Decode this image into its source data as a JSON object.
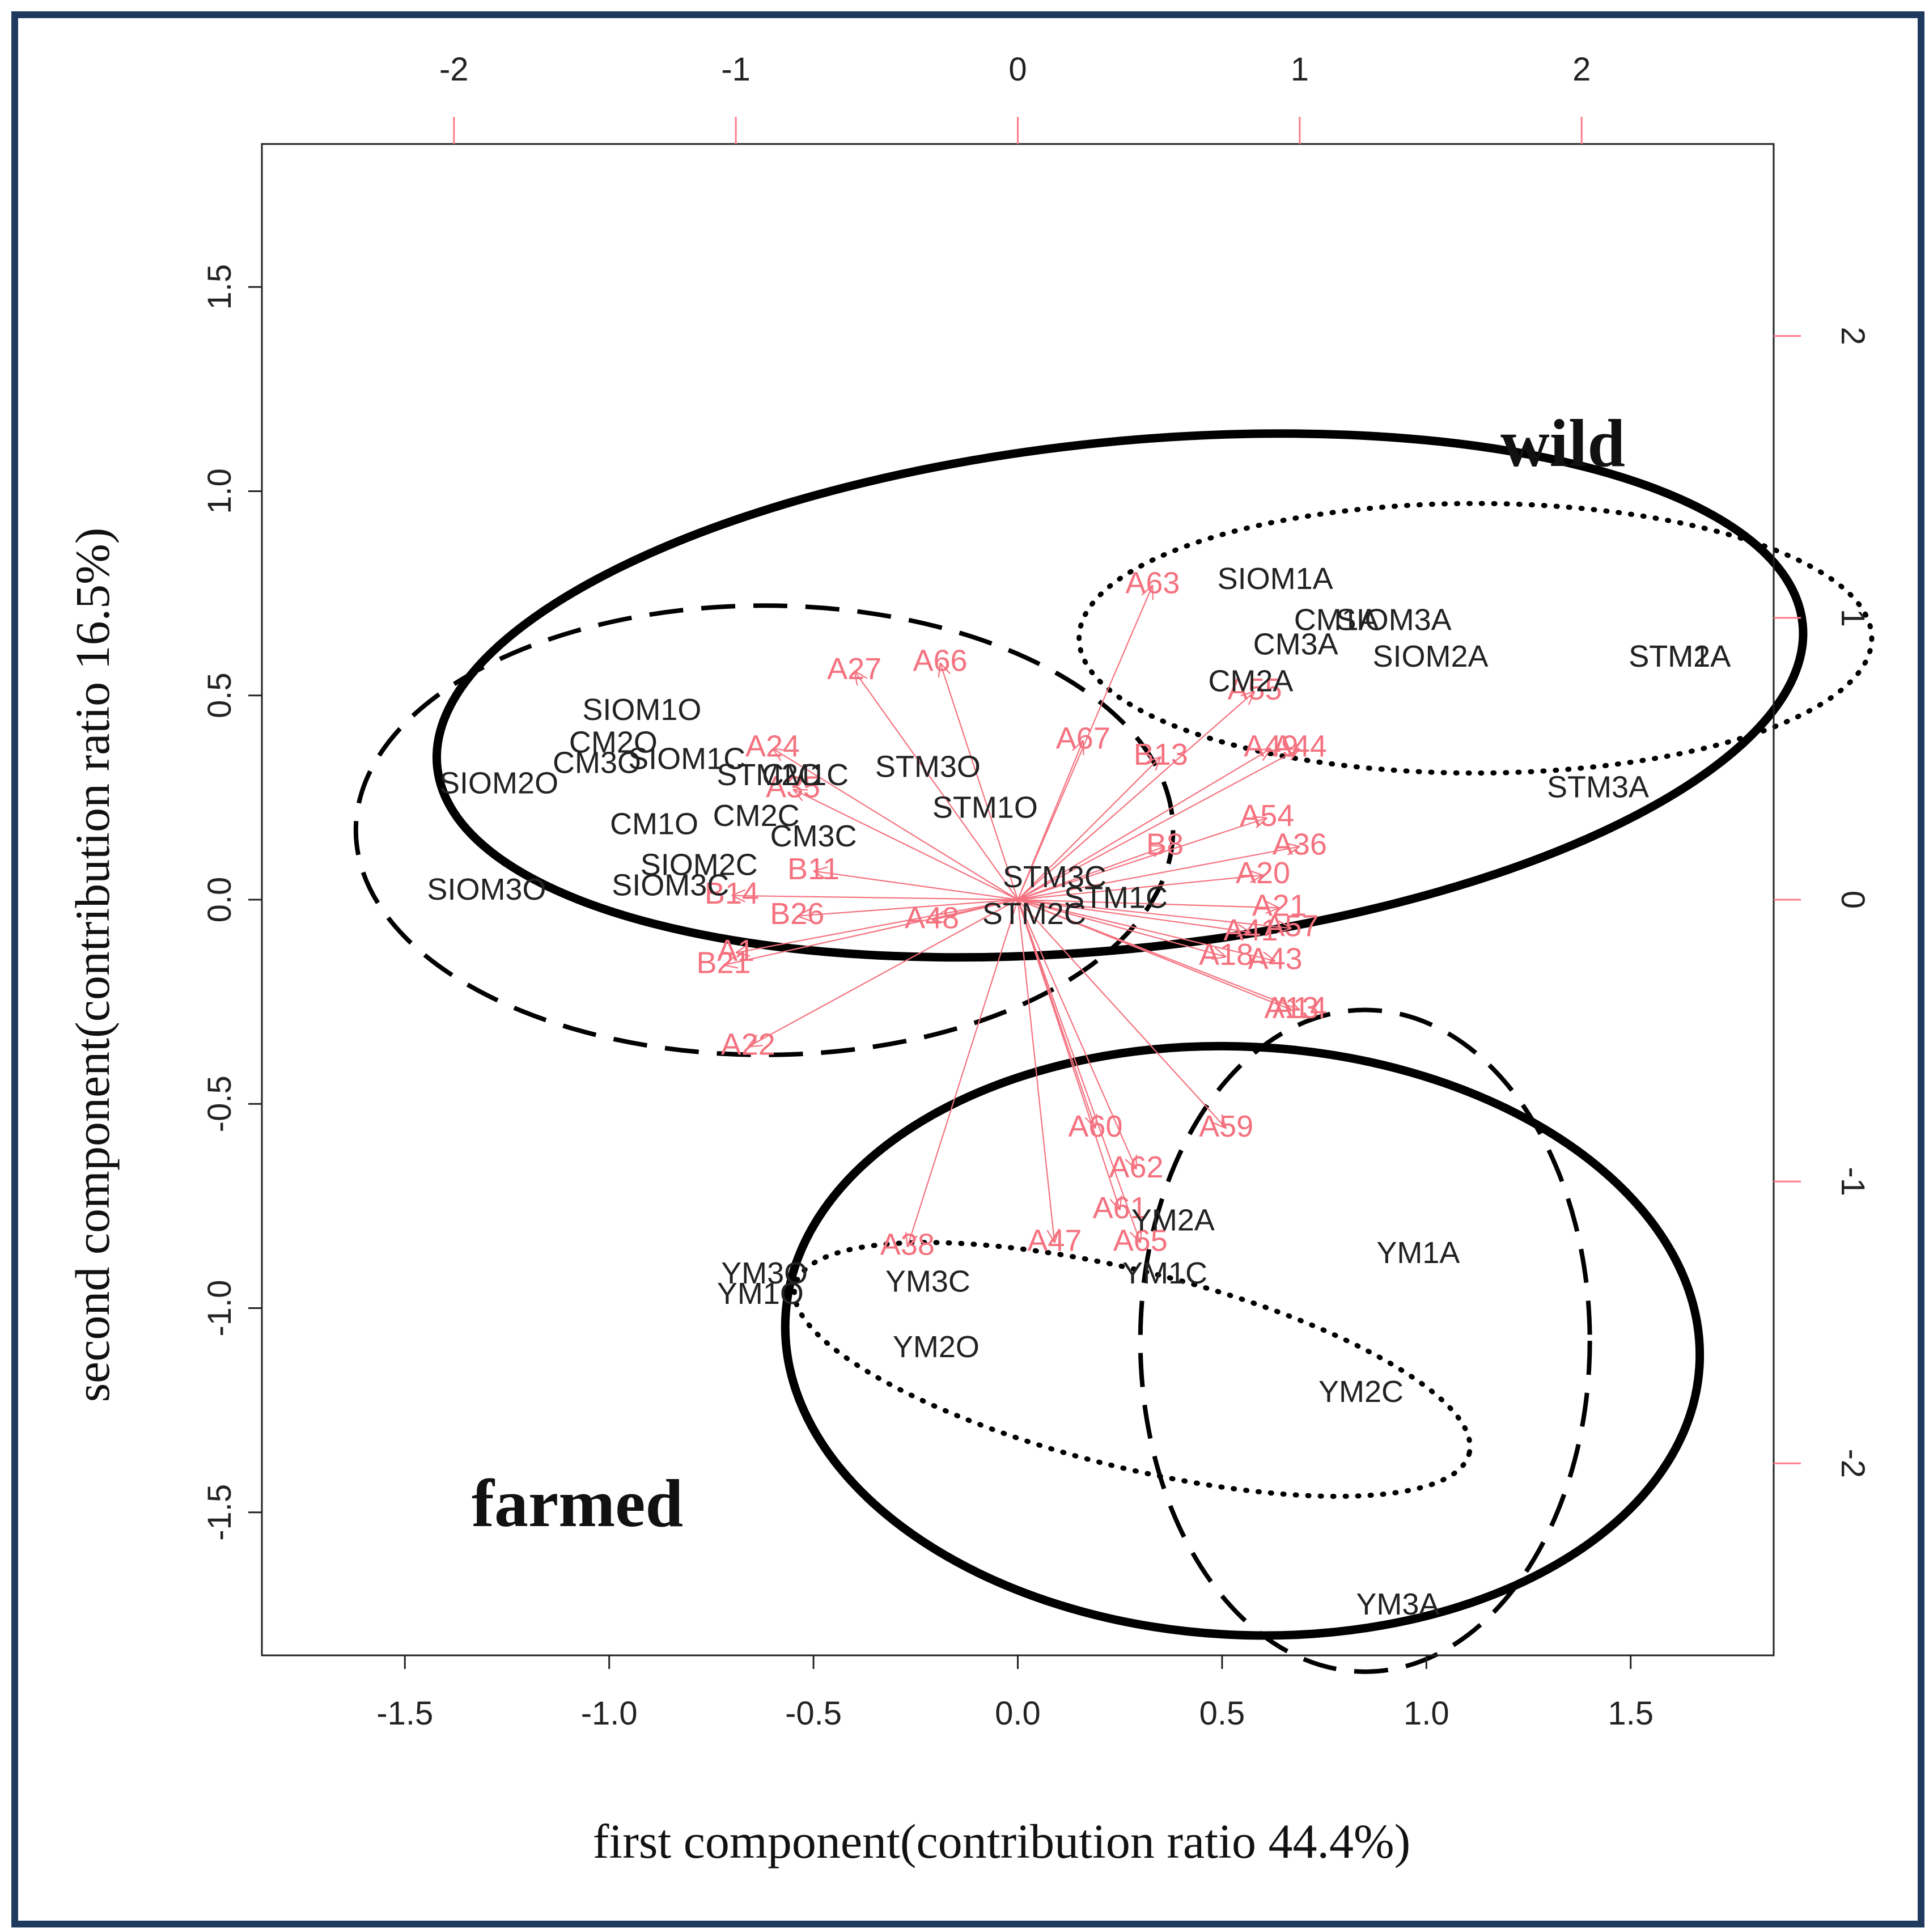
{
  "chart_data": {
    "type": "biplot",
    "xlabel": "first component(contribution ratio 44.4%)",
    "ylabel": "second component(contribution ratio 16.5%)",
    "xlim": [
      -1.85,
      1.85
    ],
    "ylim": [
      -1.85,
      1.85
    ],
    "x_ticks": [
      "-1.5",
      "-1.0",
      "-0.5",
      "0.0",
      "0.5",
      "1.0",
      "1.5"
    ],
    "y_ticks": [
      "-1.5",
      "-1.0",
      "-0.5",
      "0.0",
      "0.5",
      "1.0",
      "1.5"
    ],
    "top_ticks": [
      "-2",
      "-1",
      "0",
      "1",
      "2"
    ],
    "right_ticks": [
      "-2",
      "-1",
      "0",
      "1",
      "2"
    ],
    "loadings_scale_per_unit": 0.69,
    "groups": [
      {
        "label": "wild"
      },
      {
        "label": "farmed"
      }
    ],
    "ellipses": [
      {
        "style": "solid",
        "cx": 0.25,
        "cy": 0.5,
        "rx": 1.68,
        "ry": 0.62,
        "angle": 6
      },
      {
        "style": "dashed",
        "cx": -0.62,
        "cy": 0.17,
        "rx": 1.0,
        "ry": 0.55,
        "angle": 0
      },
      {
        "style": "dotted",
        "cx": 1.12,
        "cy": 0.64,
        "rx": 0.97,
        "ry": 0.33,
        "angle": 0
      },
      {
        "style": "solid",
        "cx": 0.55,
        "cy": -1.08,
        "rx": 1.12,
        "ry": 0.72,
        "angle": -3
      },
      {
        "style": "dashed",
        "cx": 0.85,
        "cy": -1.08,
        "rx": 0.55,
        "ry": 0.81,
        "angle": 0
      },
      {
        "style": "dotted",
        "cx": 0.28,
        "cy": -1.15,
        "rx": 0.85,
        "ry": 0.24,
        "angle": -14
      }
    ],
    "samples": [
      {
        "label": "SIOM1A",
        "x": 0.63,
        "y": 0.78
      },
      {
        "label": "CM1A",
        "x": 0.78,
        "y": 0.68
      },
      {
        "label": "SIOM3A",
        "x": 0.92,
        "y": 0.68
      },
      {
        "label": "CM3A",
        "x": 0.68,
        "y": 0.62
      },
      {
        "label": "SIOM2A",
        "x": 1.01,
        "y": 0.59
      },
      {
        "label": "STM1A",
        "x": 1.62,
        "y": 0.59
      },
      {
        "label": "STM2A",
        "x": 1.62,
        "y": 0.59
      },
      {
        "label": "CM2A",
        "x": 0.57,
        "y": 0.53
      },
      {
        "label": "STM3A",
        "x": 1.42,
        "y": 0.27
      },
      {
        "label": "SIOM1O",
        "x": -0.92,
        "y": 0.46
      },
      {
        "label": "CM2O",
        "x": -0.99,
        "y": 0.38
      },
      {
        "label": "CM3O",
        "x": -1.03,
        "y": 0.33
      },
      {
        "label": "SIOM1C",
        "x": -0.81,
        "y": 0.34
      },
      {
        "label": "SIOM2O",
        "x": -1.27,
        "y": 0.28
      },
      {
        "label": "STM2C",
        "x": -0.61,
        "y": 0.3
      },
      {
        "label": "CM1C",
        "x": -0.52,
        "y": 0.3
      },
      {
        "label": "STM3O",
        "x": -0.22,
        "y": 0.32
      },
      {
        "label": "STM1O",
        "x": -0.08,
        "y": 0.22
      },
      {
        "label": "CM1O",
        "x": -0.89,
        "y": 0.18
      },
      {
        "label": "CM2C",
        "x": -0.64,
        "y": 0.2
      },
      {
        "label": "CM3C",
        "x": -0.5,
        "y": 0.15
      },
      {
        "label": "SIOM2C",
        "x": -0.78,
        "y": 0.08
      },
      {
        "label": "SIOM3O",
        "x": -1.3,
        "y": 0.02
      },
      {
        "label": "SIOM3C",
        "x": -0.85,
        "y": 0.03
      },
      {
        "label": "STM3C",
        "x": 0.09,
        "y": 0.05
      },
      {
        "label": "STM1C",
        "x": 0.24,
        "y": 0.0
      },
      {
        "label": "STM2C",
        "x": 0.04,
        "y": -0.04
      },
      {
        "label": "YM2A",
        "x": 0.38,
        "y": -0.79
      },
      {
        "label": "YM1A",
        "x": 0.98,
        "y": -0.87
      },
      {
        "label": "YM1C",
        "x": 0.36,
        "y": -0.92
      },
      {
        "label": "YM3O",
        "x": -0.62,
        "y": -0.92
      },
      {
        "label": "YM3C",
        "x": -0.22,
        "y": -0.94
      },
      {
        "label": "YM1O",
        "x": -0.63,
        "y": -0.97
      },
      {
        "label": "YM2O",
        "x": -0.2,
        "y": -1.1
      },
      {
        "label": "YM2C",
        "x": 0.84,
        "y": -1.21
      },
      {
        "label": "YM3A",
        "x": 0.93,
        "y": -1.73
      }
    ],
    "variables": [
      {
        "label": "A63",
        "x": 0.33,
        "y": 0.77,
        "tx": 0.29,
        "ty": 0.62
      },
      {
        "label": "A27",
        "x": -0.4,
        "y": 0.56,
        "tx": -0.33,
        "ty": 0.45
      },
      {
        "label": "A66",
        "x": -0.19,
        "y": 0.58,
        "tx": -0.16,
        "ty": 0.47
      },
      {
        "label": "A67",
        "x": 0.16,
        "y": 0.39,
        "tx": 0.14,
        "ty": 0.33
      },
      {
        "label": "B13",
        "x": 0.35,
        "y": 0.35,
        "tx": 0.3,
        "ty": 0.3
      },
      {
        "label": "A49",
        "x": 0.62,
        "y": 0.37,
        "tx": 0.54,
        "ty": 0.32
      },
      {
        "label": "A44",
        "x": 0.69,
        "y": 0.37,
        "tx": 0.55,
        "ty": 0.3
      },
      {
        "label": "A24",
        "x": -0.6,
        "y": 0.37,
        "tx": -0.5,
        "ty": 0.3
      },
      {
        "label": "A55",
        "x": 0.58,
        "y": 0.51,
        "tx": 0.5,
        "ty": 0.48
      },
      {
        "label": "A54",
        "x": 0.61,
        "y": 0.2,
        "tx": 0.52,
        "ty": 0.17
      },
      {
        "label": "A36",
        "x": 0.69,
        "y": 0.13,
        "tx": 0.53,
        "ty": 0.12
      },
      {
        "label": "B8",
        "x": 0.36,
        "y": 0.13,
        "tx": 0.3,
        "ty": 0.11
      },
      {
        "label": "A20",
        "x": 0.6,
        "y": 0.06,
        "tx": 0.52,
        "ty": 0.06
      },
      {
        "label": "A35",
        "x": -0.55,
        "y": 0.27,
        "tx": -0.45,
        "ty": 0.2
      },
      {
        "label": "B11",
        "x": -0.5,
        "y": 0.07,
        "tx": -0.42,
        "ty": 0.06
      },
      {
        "label": "B14",
        "x": -0.7,
        "y": 0.01,
        "tx": -0.6,
        "ty": 0.01
      },
      {
        "label": "B26",
        "x": -0.54,
        "y": -0.04,
        "tx": -0.45,
        "ty": -0.04
      },
      {
        "label": "A21",
        "x": 0.64,
        "y": -0.02,
        "tx": 0.53,
        "ty": -0.02
      },
      {
        "label": "A57",
        "x": 0.67,
        "y": -0.07,
        "tx": 0.55,
        "ty": -0.06
      },
      {
        "label": "A41",
        "x": 0.57,
        "y": -0.08,
        "tx": 0.5,
        "ty": -0.07
      },
      {
        "label": "A48",
        "x": -0.21,
        "y": -0.05,
        "tx": -0.18,
        "ty": -0.04
      },
      {
        "label": "A1",
        "x": -0.69,
        "y": -0.13,
        "tx": -0.58,
        "ty": -0.11
      },
      {
        "label": "B21",
        "x": -0.72,
        "y": -0.16,
        "tx": -0.6,
        "ty": -0.13
      },
      {
        "label": "A18",
        "x": 0.51,
        "y": -0.14,
        "tx": 0.44,
        "ty": -0.12
      },
      {
        "label": "A43",
        "x": 0.63,
        "y": -0.15,
        "tx": 0.55,
        "ty": -0.14
      },
      {
        "label": "A13",
        "x": 0.67,
        "y": -0.27,
        "tx": 0.58,
        "ty": -0.21
      },
      {
        "label": "A14",
        "x": 0.69,
        "y": -0.27,
        "tx": 0.59,
        "ty": -0.21
      },
      {
        "label": "A22",
        "x": -0.66,
        "y": -0.36,
        "tx": -0.5,
        "ty": -0.3
      },
      {
        "label": "A60",
        "x": 0.19,
        "y": -0.56,
        "tx": 0.19,
        "ty": -0.52
      },
      {
        "label": "A59",
        "x": 0.51,
        "y": -0.56,
        "tx": 0.45,
        "ty": -0.44
      },
      {
        "label": "A62",
        "x": 0.29,
        "y": -0.66,
        "tx": 0.24,
        "ty": -0.6
      },
      {
        "label": "A61",
        "x": 0.25,
        "y": -0.76,
        "tx": 0.22,
        "ty": -0.66
      },
      {
        "label": "A47",
        "x": 0.09,
        "y": -0.84,
        "tx": 0.09,
        "ty": -0.68
      },
      {
        "label": "A38",
        "x": -0.27,
        "y": -0.85,
        "tx": -0.17,
        "ty": -0.68
      },
      {
        "label": "A65",
        "x": 0.3,
        "y": -0.84,
        "tx": 0.24,
        "ty": -0.7
      }
    ]
  }
}
